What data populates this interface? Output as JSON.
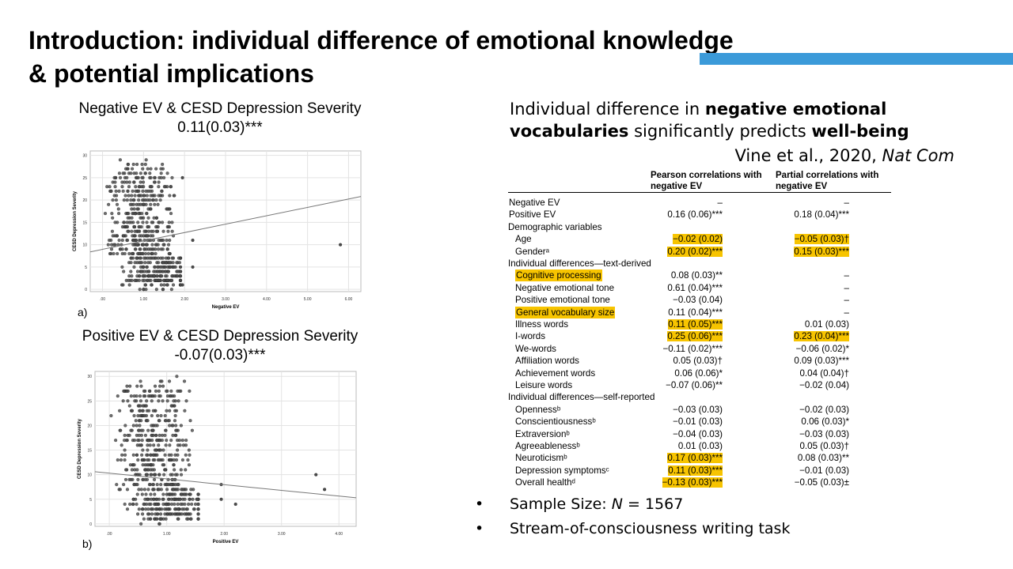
{
  "slide": {
    "title_line1": "Introduction: individual difference of emotional knowledge",
    "title_line2": "& potential implications",
    "accent_color": "#3b9ad9"
  },
  "plots": {
    "a": {
      "title": "Negative EV & CESD Depression Severity",
      "stat": "0.11(0.03)***",
      "panel_label": "a)",
      "xlabel": "Negative EV",
      "ylabel": "CESD Depression Severity",
      "xticks": [
        ".00",
        "1.00",
        "2.00",
        "3.00",
        "4.00",
        "5.00",
        "6.00"
      ],
      "yticks": [
        "0",
        "5",
        "10",
        "15",
        "20",
        "25",
        "30"
      ]
    },
    "b": {
      "title": "Positive EV & CESD Depression Severity",
      "stat": "-0.07(0.03)***",
      "panel_label": "b)",
      "xlabel": "Positive EV",
      "ylabel": "CESD Depression Severity",
      "xticks": [
        ".00",
        "1.00",
        "2.00",
        "3.00",
        "4.00"
      ],
      "yticks": [
        "0",
        "5",
        "10",
        "15",
        "20",
        "25",
        "30"
      ]
    }
  },
  "chart_data": [
    {
      "type": "scatter",
      "xlabel": "Negative EV",
      "ylabel": "CESD Depression Severity",
      "xlim": [
        -0.3,
        6.3
      ],
      "ylim": [
        -0.5,
        31
      ],
      "fit_line": {
        "x": [
          -0.3,
          6.3
        ],
        "y": [
          8.4,
          20.8
        ]
      },
      "outliers": [
        [
          1.95,
          25
        ],
        [
          2.2,
          11
        ],
        [
          2.2,
          5
        ],
        [
          1.95,
          1
        ],
        [
          5.8,
          10
        ]
      ],
      "note": "~1567 points, bulk between 0 and 2 on x; integer y values"
    },
    {
      "type": "scatter",
      "xlabel": "Positive EV",
      "ylabel": "CESD Depression Severity",
      "xlim": [
        -0.25,
        4.3
      ],
      "ylim": [
        -0.5,
        31
      ],
      "fit_line": {
        "x": [
          -0.25,
          4.3
        ],
        "y": [
          10.6,
          5.3
        ]
      },
      "outliers": [
        [
          3.6,
          10
        ],
        [
          3.75,
          7
        ],
        [
          1.95,
          8
        ],
        [
          1.95,
          5
        ],
        [
          2.2,
          4
        ]
      ],
      "note": "~1567 points, bulk between 0 and 1.5 on x; integer y values"
    }
  ],
  "right": {
    "heading_pre": "Individual difference in ",
    "heading_bold1": "negative emotional",
    "heading_bold2": "vocabularies",
    "heading_mid": " significantly predicts ",
    "heading_bold3": "well-being",
    "citation_text": "Vine et al., 2020, ",
    "citation_journal": "Nat Com"
  },
  "table": {
    "col1_header_l1": "Pearson correlations with",
    "col1_header_l2": "negative EV",
    "col2_header_l1": "Partial correlations with",
    "col2_header_l2": "negative EV",
    "highlight_color": "#f7c400",
    "rows": [
      {
        "label": "Negative EV",
        "c1": "–",
        "c2": "–",
        "indent": 0
      },
      {
        "label": "Positive EV",
        "c1": "0.16 (0.06)***",
        "c2": "0.18 (0.04)***",
        "indent": 0
      },
      {
        "label": "Demographic variables",
        "section": true
      },
      {
        "label": "Age",
        "c1": "−0.02 (0.02)",
        "c2": "−0.05 (0.03)†",
        "indent": 1,
        "hl1": true,
        "hl2": true
      },
      {
        "label": "Genderᵃ",
        "c1": "0.20 (0.02)***",
        "c2": "0.15 (0.03)***",
        "indent": 1,
        "hl1": true,
        "hl2": true
      },
      {
        "label": "Individual differences—text-derived",
        "section": true
      },
      {
        "label": "Cognitive processing",
        "c1": "0.08 (0.03)**",
        "c2": "–",
        "indent": 1,
        "hlLabel": true
      },
      {
        "label": "Negative emotional tone",
        "c1": "0.61 (0.04)***",
        "c2": "–",
        "indent": 1
      },
      {
        "label": "Positive emotional tone",
        "c1": "−0.03 (0.04)",
        "c2": "–",
        "indent": 1
      },
      {
        "label": "General vocabulary size",
        "c1": "0.11 (0.04)***",
        "c2": "–",
        "indent": 1,
        "hlLabel": true
      },
      {
        "label": "Illness words",
        "c1": "0.11 (0.05)***",
        "c2": "0.01 (0.03)",
        "indent": 1,
        "hl1": true
      },
      {
        "label": "I-words",
        "c1": "0.25 (0.06)***",
        "c2": "0.23 (0.04)***",
        "indent": 1,
        "hl1": true,
        "hl2": true
      },
      {
        "label": "We-words",
        "c1": "−0.11 (0.02)***",
        "c2": "−0.06 (0.02)*",
        "indent": 1
      },
      {
        "label": "Affiliation words",
        "c1": "0.05 (0.03)†",
        "c2": "0.09 (0.03)***",
        "indent": 1
      },
      {
        "label": "Achievement words",
        "c1": "0.06 (0.06)*",
        "c2": "0.04 (0.04)†",
        "indent": 1
      },
      {
        "label": "Leisure words",
        "c1": "−0.07 (0.06)**",
        "c2": "−0.02 (0.04)",
        "indent": 1
      },
      {
        "label": "Individual differences—self-reported",
        "section": true
      },
      {
        "label": "Opennessᵇ",
        "c1": "−0.03 (0.03)",
        "c2": "−0.02 (0.03)",
        "indent": 1
      },
      {
        "label": "Conscientiousnessᵇ",
        "c1": "−0.01 (0.03)",
        "c2": "0.06 (0.03)*",
        "indent": 1
      },
      {
        "label": "Extraversionᵇ",
        "c1": "−0.04 (0.03)",
        "c2": "−0.03 (0.03)",
        "indent": 1
      },
      {
        "label": "Agreeablenessᵇ",
        "c1": "0.01 (0.03)",
        "c2": "0.05 (0.03)†",
        "indent": 1
      },
      {
        "label": "Neuroticismᵇ",
        "c1": "0.17 (0.03)***",
        "c2": "0.08 (0.03)**",
        "indent": 1,
        "hl1": true
      },
      {
        "label": "Depression symptomsᶜ",
        "c1": "0.11 (0.03)***",
        "c2": "−0.01 (0.03)",
        "indent": 1,
        "hl1": true
      },
      {
        "label": "Overall healthᵈ",
        "c1": "−0.13 (0.03)***",
        "c2": "−0.05 (0.03)±",
        "indent": 1,
        "hl1": true
      }
    ]
  },
  "bullets": {
    "b1_pre": "Sample Size: ",
    "b1_var": "N",
    "b1_post": " = 1567",
    "b2": "Stream-of-consciousness writing task",
    "marker": "•"
  }
}
